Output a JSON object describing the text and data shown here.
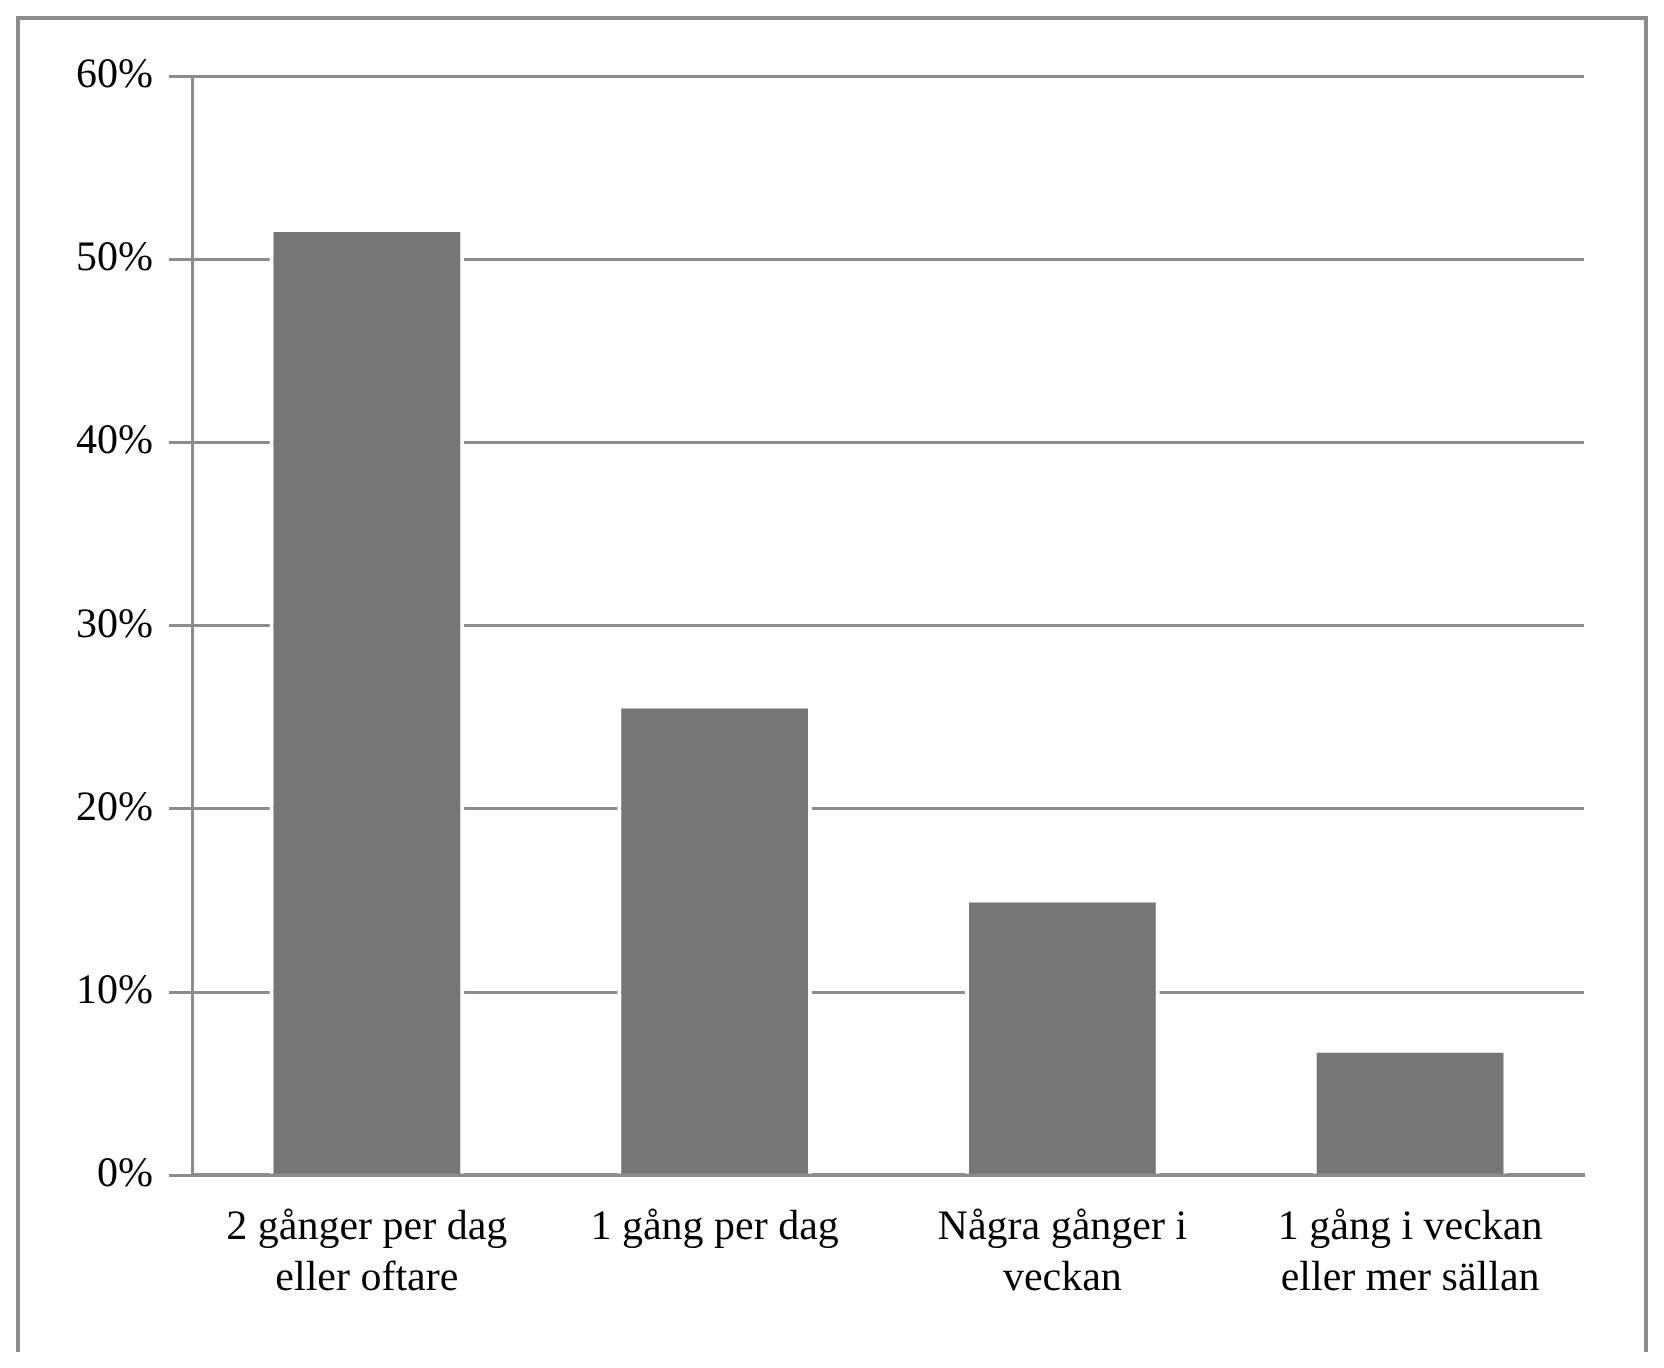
{
  "chart_data": {
    "type": "bar",
    "categories": [
      "2 gånger per dag eller oftare",
      "1 gång per dag",
      "Några gånger i veckan",
      "1 gång i veckan eller mer sällan"
    ],
    "values": [
      51.7,
      25.7,
      15.1,
      6.9
    ],
    "color": "#767676",
    "ylim": [
      0,
      60
    ],
    "yticks": [
      {
        "value": 0,
        "label": "0%"
      },
      {
        "value": 10,
        "label": "10%"
      },
      {
        "value": 20,
        "label": "20%"
      },
      {
        "value": 30,
        "label": "30%"
      },
      {
        "value": 40,
        "label": "40%"
      },
      {
        "value": 50,
        "label": "50%"
      },
      {
        "value": 60,
        "label": "60%"
      }
    ],
    "grid": "y"
  }
}
